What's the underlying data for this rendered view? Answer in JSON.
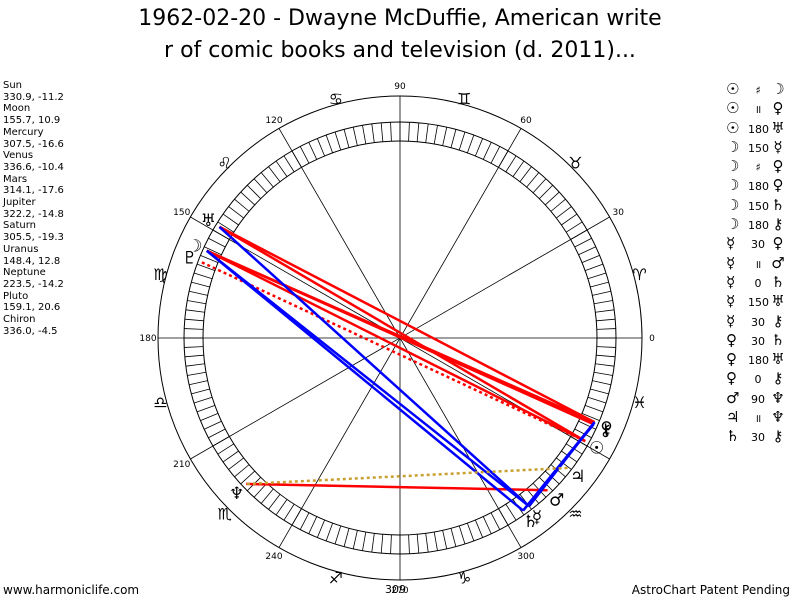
{
  "header": {
    "line1": "1962-02-20 - Dwayne McDuffie, American write",
    "line2": "r of comic books and television (d. 2011)..."
  },
  "planets": [
    {
      "name": "Sun",
      "values": "330.9, -11.2"
    },
    {
      "name": "Moon",
      "values": "155.7, 10.9"
    },
    {
      "name": "Mercury",
      "values": "307.5, -16.6"
    },
    {
      "name": "Venus",
      "values": "336.6, -10.4"
    },
    {
      "name": "Mars",
      "values": "314.1, -17.6"
    },
    {
      "name": "Jupiter",
      "values": "322.2, -14.8"
    },
    {
      "name": "Saturn",
      "values": "305.5, -19.3"
    },
    {
      "name": "Uranus",
      "values": "148.4, 12.8"
    },
    {
      "name": "Neptune",
      "values": "223.5, -14.2"
    },
    {
      "name": "Pluto",
      "values": "159.1, 20.6"
    },
    {
      "name": "Chiron",
      "values": "336.0, -4.5"
    }
  ],
  "aspects": [
    {
      "p1": "☉",
      "sym": "♯",
      "p2": "☽"
    },
    {
      "p1": "☉",
      "sym": "॥",
      "p2": "♀"
    },
    {
      "p1": "☉",
      "sym": "180",
      "p2": "♅"
    },
    {
      "p1": "☽",
      "sym": "150",
      "p2": "☿"
    },
    {
      "p1": "☽",
      "sym": "♯",
      "p2": "♀"
    },
    {
      "p1": "☽",
      "sym": "180",
      "p2": "♀"
    },
    {
      "p1": "☽",
      "sym": "150",
      "p2": "♄"
    },
    {
      "p1": "☽",
      "sym": "180",
      "p2": "⚷"
    },
    {
      "p1": "☿",
      "sym": "30",
      "p2": "♀"
    },
    {
      "p1": "☿",
      "sym": "॥",
      "p2": "♂"
    },
    {
      "p1": "☿",
      "sym": "0",
      "p2": "♄"
    },
    {
      "p1": "☿",
      "sym": "150",
      "p2": "♅"
    },
    {
      "p1": "☿",
      "sym": "30",
      "p2": "⚷"
    },
    {
      "p1": "♀",
      "sym": "30",
      "p2": "♄"
    },
    {
      "p1": "♀",
      "sym": "180",
      "p2": "♅"
    },
    {
      "p1": "♀",
      "sym": "0",
      "p2": "⚷"
    },
    {
      "p1": "♂",
      "sym": "90",
      "p2": "♆"
    },
    {
      "p1": "♃",
      "sym": "॥",
      "p2": "♆"
    },
    {
      "p1": "♄",
      "sym": "30",
      "p2": "⚷"
    }
  ],
  "wheel": {
    "degree_labels": [
      "0",
      "30",
      "60",
      "90",
      "120",
      "150",
      "180",
      "210",
      "240",
      "270",
      "300"
    ],
    "sign_glyphs": [
      "♈",
      "♉",
      "♊",
      "♋",
      "♌",
      "♍",
      "♎",
      "♏",
      "♐",
      "♑",
      "♒",
      "♓"
    ],
    "planet_glyphs": [
      {
        "name": "sun-glyph",
        "glyph": "☉",
        "lon": 330.9
      },
      {
        "name": "moon-glyph",
        "glyph": "☽",
        "lon": 155.7
      },
      {
        "name": "mercury-glyph",
        "glyph": "☿",
        "lon": 307.5
      },
      {
        "name": "venus-glyph",
        "glyph": "♀",
        "lon": 336.6
      },
      {
        "name": "mars-glyph",
        "glyph": "♂",
        "lon": 314.1
      },
      {
        "name": "jupiter-glyph",
        "glyph": "♃",
        "lon": 322.2
      },
      {
        "name": "saturn-glyph",
        "glyph": "♄",
        "lon": 305.5
      },
      {
        "name": "uranus-glyph",
        "glyph": "♅",
        "lon": 148.4
      },
      {
        "name": "neptune-glyph",
        "glyph": "♆",
        "lon": 223.5
      },
      {
        "name": "pluto-glyph",
        "glyph": "♇",
        "lon": 159.1
      },
      {
        "name": "chiron-glyph",
        "glyph": "⚷",
        "lon": 336.0
      }
    ],
    "aspect_lines": [
      {
        "from": 330.9,
        "to": 155.7,
        "color": "#ff0000",
        "dashed": false
      },
      {
        "from": 330.9,
        "to": 148.4,
        "color": "#ff0000",
        "dashed": false
      },
      {
        "from": 336.6,
        "to": 155.7,
        "color": "#ff0000",
        "dashed": false
      },
      {
        "from": 336.0,
        "to": 155.7,
        "color": "#ff0000",
        "dashed": false
      },
      {
        "from": 336.6,
        "to": 148.4,
        "color": "#ff0000",
        "dashed": false
      },
      {
        "from": 314.1,
        "to": 223.5,
        "color": "#ff0000",
        "dashed": false
      },
      {
        "from": 330.9,
        "to": 159.1,
        "color": "#ff0000",
        "dashed": true
      },
      {
        "from": 155.7,
        "to": 307.5,
        "color": "#0000ff",
        "dashed": false
      },
      {
        "from": 155.7,
        "to": 305.5,
        "color": "#0000ff",
        "dashed": false
      },
      {
        "from": 148.4,
        "to": 307.5,
        "color": "#0000ff",
        "dashed": false
      },
      {
        "from": 307.5,
        "to": 336.6,
        "color": "#0000ff",
        "dashed": false
      },
      {
        "from": 305.5,
        "to": 336.0,
        "color": "#0000ff",
        "dashed": false
      },
      {
        "from": 336.6,
        "to": 305.5,
        "color": "#0000ff",
        "dashed": false
      },
      {
        "from": 322.2,
        "to": 223.5,
        "color": "#c8a030",
        "dashed": true
      }
    ],
    "colors": {
      "frame": "#000000",
      "hatch": "#000000"
    }
  },
  "footer": {
    "left": "www.harmoniclife.com",
    "center": "309",
    "right": "AstroChart Patent Pending"
  }
}
